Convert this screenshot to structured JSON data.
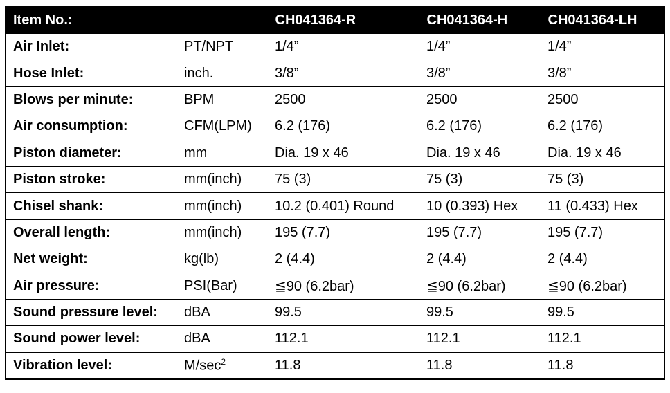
{
  "header": {
    "item_no": "Item No.:",
    "unit": "",
    "models": [
      "CH041364-R",
      "CH041364-H",
      "CH041364-LH"
    ]
  },
  "rows": [
    {
      "label": "Air Inlet:",
      "unit": "PT/NPT",
      "values": [
        "1/4”",
        "1/4”",
        "1/4”"
      ]
    },
    {
      "label": "Hose Inlet:",
      "unit": "inch.",
      "values": [
        "3/8”",
        "3/8”",
        "3/8”"
      ]
    },
    {
      "label": "Blows per minute:",
      "unit": "BPM",
      "values": [
        "2500",
        "2500",
        "2500"
      ]
    },
    {
      "label": "Air consumption:",
      "unit": "CFM(LPM)",
      "values": [
        "6.2 (176)",
        "6.2 (176)",
        "6.2 (176)"
      ]
    },
    {
      "label": "Piston diameter:",
      "unit": "mm",
      "values": [
        "Dia. 19 x 46",
        "Dia. 19 x 46",
        "Dia. 19 x 46"
      ]
    },
    {
      "label": "Piston stroke:",
      "unit": "mm(inch)",
      "values": [
        "75 (3)",
        "75 (3)",
        "75 (3)"
      ]
    },
    {
      "label": "Chisel shank:",
      "unit": "mm(inch)",
      "values": [
        "10.2 (0.401) Round",
        "10 (0.393) Hex",
        "11 (0.433) Hex"
      ]
    },
    {
      "label": "Overall length:",
      "unit": "mm(inch)",
      "values": [
        "195 (7.7)",
        "195 (7.7)",
        "195 (7.7)"
      ]
    },
    {
      "label": "Net weight:",
      "unit": "kg(lb)",
      "values": [
        "2 (4.4)",
        "2 (4.4)",
        "2 (4.4)"
      ]
    },
    {
      "label": "Air pressure:",
      "unit": "PSI(Bar)",
      "values": [
        "≦90 (6.2bar)",
        "≦90 (6.2bar)",
        "≦90 (6.2bar)"
      ]
    },
    {
      "label": "Sound pressure level:",
      "unit": "dBA",
      "values": [
        "99.5",
        "99.5",
        "99.5"
      ]
    },
    {
      "label": "Sound power level:",
      "unit": "dBA",
      "values": [
        "112.1",
        "112.1",
        "112.1"
      ]
    },
    {
      "label": "Vibration level:",
      "unit": "M/sec",
      "unit_sup": "2",
      "values": [
        "11.8",
        "11.8",
        "11.8"
      ]
    }
  ]
}
